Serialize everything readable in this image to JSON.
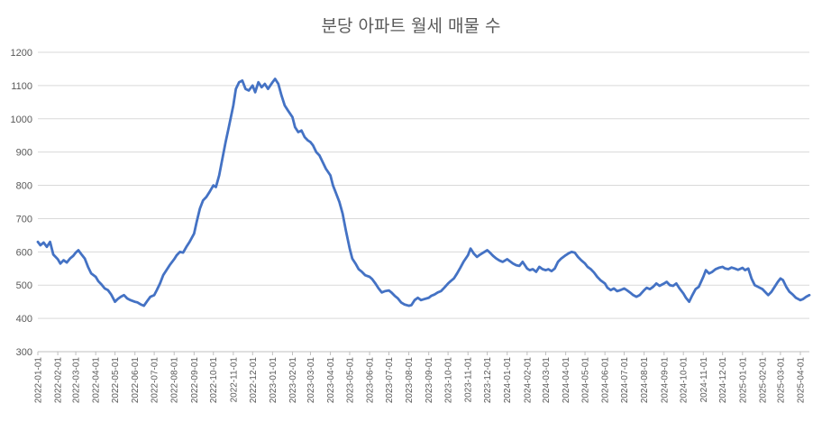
{
  "chart_data": {
    "type": "line",
    "title": "분당 아파트 월세 매물 수",
    "xlabel": "",
    "ylabel": "",
    "ylim": [
      300,
      1200
    ],
    "yticks": [
      300,
      400,
      500,
      600,
      700,
      800,
      900,
      1000,
      1100,
      1200
    ],
    "grid": true,
    "legend": "none",
    "x_start": "2022-01-01",
    "x_end": "2025-04-15",
    "xtick_labels": [
      "2022-01-01",
      "2022-02-01",
      "2022-03-01",
      "2022-04-01",
      "2022-05-01",
      "2022-06-01",
      "2022-07-01",
      "2022-08-01",
      "2022-09-01",
      "2022-10-01",
      "2022-11-01",
      "2022-12-01",
      "2023-01-01",
      "2023-02-01",
      "2023-03-01",
      "2023-04-01",
      "2023-05-01",
      "2023-06-01",
      "2023-07-01",
      "2023-08-01",
      "2023-09-01",
      "2023-10-01",
      "2023-11-01",
      "2023-12-01",
      "2024-01-01",
      "2024-02-01",
      "2024-03-01",
      "2024-04-01",
      "2024-05-01",
      "2024-06-01",
      "2024-07-01",
      "2024-08-01",
      "2024-09-01",
      "2024-10-01",
      "2024-11-01",
      "2024-12-01",
      "2025-01-01",
      "2025-02-01",
      "2025-03-01",
      "2025-04-01"
    ],
    "series": [
      {
        "color": "#4472C4",
        "points": [
          [
            "2022-01-01",
            630
          ],
          [
            "2022-01-05",
            620
          ],
          [
            "2022-01-10",
            628
          ],
          [
            "2022-01-15",
            615
          ],
          [
            "2022-01-20",
            630
          ],
          [
            "2022-01-25",
            592
          ],
          [
            "2022-02-01",
            578
          ],
          [
            "2022-02-05",
            565
          ],
          [
            "2022-02-10",
            575
          ],
          [
            "2022-02-15",
            568
          ],
          [
            "2022-02-20",
            580
          ],
          [
            "2022-02-25",
            588
          ],
          [
            "2022-03-01",
            598
          ],
          [
            "2022-03-05",
            605
          ],
          [
            "2022-03-10",
            592
          ],
          [
            "2022-03-15",
            580
          ],
          [
            "2022-03-20",
            555
          ],
          [
            "2022-03-25",
            535
          ],
          [
            "2022-04-01",
            525
          ],
          [
            "2022-04-05",
            512
          ],
          [
            "2022-04-10",
            502
          ],
          [
            "2022-04-15",
            490
          ],
          [
            "2022-04-20",
            485
          ],
          [
            "2022-04-25",
            472
          ],
          [
            "2022-05-01",
            450
          ],
          [
            "2022-05-05",
            458
          ],
          [
            "2022-05-10",
            465
          ],
          [
            "2022-05-15",
            470
          ],
          [
            "2022-05-20",
            460
          ],
          [
            "2022-05-25",
            455
          ],
          [
            "2022-06-01",
            450
          ],
          [
            "2022-06-05",
            448
          ],
          [
            "2022-06-10",
            442
          ],
          [
            "2022-06-15",
            438
          ],
          [
            "2022-06-20",
            452
          ],
          [
            "2022-06-25",
            465
          ],
          [
            "2022-07-01",
            470
          ],
          [
            "2022-07-05",
            485
          ],
          [
            "2022-07-10",
            505
          ],
          [
            "2022-07-15",
            530
          ],
          [
            "2022-07-20",
            545
          ],
          [
            "2022-07-25",
            560
          ],
          [
            "2022-08-01",
            578
          ],
          [
            "2022-08-05",
            590
          ],
          [
            "2022-08-10",
            600
          ],
          [
            "2022-08-15",
            598
          ],
          [
            "2022-08-20",
            615
          ],
          [
            "2022-08-25",
            630
          ],
          [
            "2022-09-01",
            655
          ],
          [
            "2022-09-05",
            690
          ],
          [
            "2022-09-10",
            730
          ],
          [
            "2022-09-15",
            755
          ],
          [
            "2022-09-20",
            765
          ],
          [
            "2022-09-25",
            780
          ],
          [
            "2022-10-01",
            800
          ],
          [
            "2022-10-05",
            795
          ],
          [
            "2022-10-10",
            830
          ],
          [
            "2022-10-15",
            880
          ],
          [
            "2022-10-20",
            930
          ],
          [
            "2022-10-25",
            975
          ],
          [
            "2022-11-01",
            1040
          ],
          [
            "2022-11-05",
            1090
          ],
          [
            "2022-11-10",
            1110
          ],
          [
            "2022-11-15",
            1115
          ],
          [
            "2022-11-20",
            1090
          ],
          [
            "2022-11-25",
            1085
          ],
          [
            "2022-12-01",
            1100
          ],
          [
            "2022-12-05",
            1080
          ],
          [
            "2022-12-10",
            1110
          ],
          [
            "2022-12-15",
            1095
          ],
          [
            "2022-12-20",
            1105
          ],
          [
            "2022-12-25",
            1090
          ],
          [
            "2023-01-01",
            1110
          ],
          [
            "2023-01-05",
            1120
          ],
          [
            "2023-01-10",
            1105
          ],
          [
            "2023-01-15",
            1070
          ],
          [
            "2023-01-20",
            1040
          ],
          [
            "2023-01-25",
            1025
          ],
          [
            "2023-02-01",
            1005
          ],
          [
            "2023-02-05",
            975
          ],
          [
            "2023-02-10",
            960
          ],
          [
            "2023-02-15",
            965
          ],
          [
            "2023-02-20",
            945
          ],
          [
            "2023-02-25",
            935
          ],
          [
            "2023-03-01",
            930
          ],
          [
            "2023-03-05",
            920
          ],
          [
            "2023-03-10",
            900
          ],
          [
            "2023-03-15",
            890
          ],
          [
            "2023-03-20",
            870
          ],
          [
            "2023-03-25",
            850
          ],
          [
            "2023-04-01",
            830
          ],
          [
            "2023-04-05",
            800
          ],
          [
            "2023-04-10",
            775
          ],
          [
            "2023-04-15",
            750
          ],
          [
            "2023-04-20",
            715
          ],
          [
            "2023-04-25",
            665
          ],
          [
            "2023-05-01",
            610
          ],
          [
            "2023-05-05",
            580
          ],
          [
            "2023-05-10",
            565
          ],
          [
            "2023-05-15",
            548
          ],
          [
            "2023-05-20",
            540
          ],
          [
            "2023-05-25",
            530
          ],
          [
            "2023-06-01",
            525
          ],
          [
            "2023-06-05",
            518
          ],
          [
            "2023-06-10",
            505
          ],
          [
            "2023-06-15",
            490
          ],
          [
            "2023-06-20",
            478
          ],
          [
            "2023-06-25",
            482
          ],
          [
            "2023-07-01",
            484
          ],
          [
            "2023-07-05",
            478
          ],
          [
            "2023-07-10",
            468
          ],
          [
            "2023-07-15",
            460
          ],
          [
            "2023-07-20",
            448
          ],
          [
            "2023-07-25",
            442
          ],
          [
            "2023-08-01",
            438
          ],
          [
            "2023-08-05",
            440
          ],
          [
            "2023-08-10",
            455
          ],
          [
            "2023-08-15",
            462
          ],
          [
            "2023-08-20",
            455
          ],
          [
            "2023-08-25",
            458
          ],
          [
            "2023-09-01",
            462
          ],
          [
            "2023-09-05",
            468
          ],
          [
            "2023-09-10",
            472
          ],
          [
            "2023-09-15",
            478
          ],
          [
            "2023-09-20",
            482
          ],
          [
            "2023-09-25",
            492
          ],
          [
            "2023-10-01",
            505
          ],
          [
            "2023-10-05",
            512
          ],
          [
            "2023-10-10",
            520
          ],
          [
            "2023-10-15",
            535
          ],
          [
            "2023-10-20",
            552
          ],
          [
            "2023-10-25",
            570
          ],
          [
            "2023-11-01",
            590
          ],
          [
            "2023-11-05",
            610
          ],
          [
            "2023-11-10",
            595
          ],
          [
            "2023-11-15",
            585
          ],
          [
            "2023-11-20",
            592
          ],
          [
            "2023-11-25",
            598
          ],
          [
            "2023-12-01",
            605
          ],
          [
            "2023-12-05",
            598
          ],
          [
            "2023-12-10",
            588
          ],
          [
            "2023-12-15",
            580
          ],
          [
            "2023-12-20",
            574
          ],
          [
            "2023-12-25",
            570
          ],
          [
            "2024-01-01",
            578
          ],
          [
            "2024-01-05",
            572
          ],
          [
            "2024-01-10",
            565
          ],
          [
            "2024-01-15",
            560
          ],
          [
            "2024-01-20",
            558
          ],
          [
            "2024-01-25",
            570
          ],
          [
            "2024-02-01",
            550
          ],
          [
            "2024-02-05",
            545
          ],
          [
            "2024-02-10",
            548
          ],
          [
            "2024-02-15",
            540
          ],
          [
            "2024-02-20",
            555
          ],
          [
            "2024-02-25",
            548
          ],
          [
            "2024-03-01",
            545
          ],
          [
            "2024-03-05",
            548
          ],
          [
            "2024-03-10",
            542
          ],
          [
            "2024-03-15",
            550
          ],
          [
            "2024-03-20",
            570
          ],
          [
            "2024-03-25",
            580
          ],
          [
            "2024-04-01",
            590
          ],
          [
            "2024-04-05",
            595
          ],
          [
            "2024-04-10",
            600
          ],
          [
            "2024-04-15",
            598
          ],
          [
            "2024-04-20",
            585
          ],
          [
            "2024-04-25",
            575
          ],
          [
            "2024-05-01",
            565
          ],
          [
            "2024-05-05",
            555
          ],
          [
            "2024-05-10",
            548
          ],
          [
            "2024-05-15",
            538
          ],
          [
            "2024-05-20",
            525
          ],
          [
            "2024-05-25",
            515
          ],
          [
            "2024-06-01",
            505
          ],
          [
            "2024-06-05",
            492
          ],
          [
            "2024-06-10",
            485
          ],
          [
            "2024-06-15",
            490
          ],
          [
            "2024-06-20",
            482
          ],
          [
            "2024-06-25",
            485
          ],
          [
            "2024-07-01",
            490
          ],
          [
            "2024-07-05",
            485
          ],
          [
            "2024-07-10",
            478
          ],
          [
            "2024-07-15",
            470
          ],
          [
            "2024-07-20",
            465
          ],
          [
            "2024-07-25",
            470
          ],
          [
            "2024-08-01",
            485
          ],
          [
            "2024-08-05",
            492
          ],
          [
            "2024-08-10",
            488
          ],
          [
            "2024-08-15",
            495
          ],
          [
            "2024-08-20",
            505
          ],
          [
            "2024-08-25",
            498
          ],
          [
            "2024-09-01",
            505
          ],
          [
            "2024-09-05",
            510
          ],
          [
            "2024-09-10",
            500
          ],
          [
            "2024-09-15",
            498
          ],
          [
            "2024-09-20",
            505
          ],
          [
            "2024-09-25",
            490
          ],
          [
            "2024-10-01",
            475
          ],
          [
            "2024-10-05",
            462
          ],
          [
            "2024-10-10",
            450
          ],
          [
            "2024-10-15",
            470
          ],
          [
            "2024-10-20",
            488
          ],
          [
            "2024-10-25",
            495
          ],
          [
            "2024-11-01",
            525
          ],
          [
            "2024-11-05",
            545
          ],
          [
            "2024-11-10",
            535
          ],
          [
            "2024-11-15",
            540
          ],
          [
            "2024-11-20",
            548
          ],
          [
            "2024-11-25",
            552
          ],
          [
            "2024-12-01",
            555
          ],
          [
            "2024-12-05",
            550
          ],
          [
            "2024-12-10",
            548
          ],
          [
            "2024-12-15",
            553
          ],
          [
            "2024-12-20",
            550
          ],
          [
            "2024-12-25",
            546
          ],
          [
            "2025-01-01",
            552
          ],
          [
            "2025-01-05",
            545
          ],
          [
            "2025-01-10",
            550
          ],
          [
            "2025-01-15",
            520
          ],
          [
            "2025-01-20",
            500
          ],
          [
            "2025-01-25",
            495
          ],
          [
            "2025-02-01",
            488
          ],
          [
            "2025-02-05",
            480
          ],
          [
            "2025-02-10",
            470
          ],
          [
            "2025-02-15",
            480
          ],
          [
            "2025-02-20",
            495
          ],
          [
            "2025-02-25",
            510
          ],
          [
            "2025-03-01",
            520
          ],
          [
            "2025-03-05",
            515
          ],
          [
            "2025-03-10",
            495
          ],
          [
            "2025-03-15",
            480
          ],
          [
            "2025-03-20",
            472
          ],
          [
            "2025-03-25",
            462
          ],
          [
            "2025-04-01",
            455
          ],
          [
            "2025-04-05",
            458
          ],
          [
            "2025-04-10",
            465
          ],
          [
            "2025-04-15",
            470
          ]
        ]
      }
    ]
  }
}
